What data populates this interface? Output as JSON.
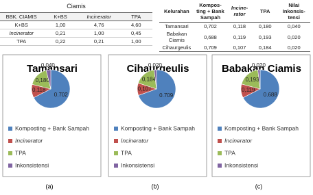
{
  "left_table": {
    "caption": "Ciamis",
    "header": [
      "BBK. CIAMIS",
      "K+BS",
      "Incinerator",
      "TPA"
    ],
    "rows": [
      [
        "K+BS",
        "1,00",
        "4,76",
        "4,60"
      ],
      [
        "Incinerator",
        "0,21",
        "1,00",
        "0,45"
      ],
      [
        "TPA",
        "0,22",
        "0,21",
        "1,00"
      ]
    ]
  },
  "right_table": {
    "header": [
      "Kelurahan",
      "Kompos-ting + Bank Sampah",
      "Incine-rator",
      "TPA",
      "Nilai Inkonsis-tensi"
    ],
    "rows": [
      [
        "Tamansari",
        "0,702",
        "0,118",
        "0,180",
        "0,040"
      ],
      [
        "Babakan Ciamis",
        "0,688",
        "0,119",
        "0,193",
        "0,020"
      ],
      [
        "Cihaurgeulis",
        "0,709",
        "0,107",
        "0,184",
        "0,020"
      ]
    ]
  },
  "chart_data": [
    {
      "type": "pie",
      "title": "Tamansari",
      "caption": "(a)",
      "categories": [
        "Komposting + Bank Sampah",
        "Incinerator",
        "TPA",
        "Inkonsistensi"
      ],
      "colors": [
        "#4f81bd",
        "#c0504d",
        "#9bbb59",
        "#8064a2"
      ],
      "values": [
        0.702,
        0.118,
        0.18,
        0.04
      ],
      "value_labels": [
        "0.702",
        "0,118",
        "0,180",
        "0,040"
      ]
    },
    {
      "type": "pie",
      "title": "Cihaurgeulis",
      "caption": "(b)",
      "categories": [
        "Komposting + Bank Sampah",
        "Incinerator",
        "TPA",
        "Inkonsistensi"
      ],
      "colors": [
        "#4f81bd",
        "#c0504d",
        "#9bbb59",
        "#8064a2"
      ],
      "values": [
        0.709,
        0.107,
        0.184,
        0.02
      ],
      "value_labels": [
        "0.709",
        "0,107",
        "0,184",
        "0,020"
      ]
    },
    {
      "type": "pie",
      "title": "Babakan Ciamis",
      "caption": "(c)",
      "categories": [
        "Komposting + Bank Sampah",
        "Incinerator",
        "TPA",
        "Inkonsistensi"
      ],
      "colors": [
        "#4f81bd",
        "#c0504d",
        "#9bbb59",
        "#8064a2"
      ],
      "values": [
        0.688,
        0.119,
        0.193,
        0.02
      ],
      "value_labels": [
        "0.688",
        "0,119",
        "0,193",
        "0,020"
      ]
    }
  ]
}
